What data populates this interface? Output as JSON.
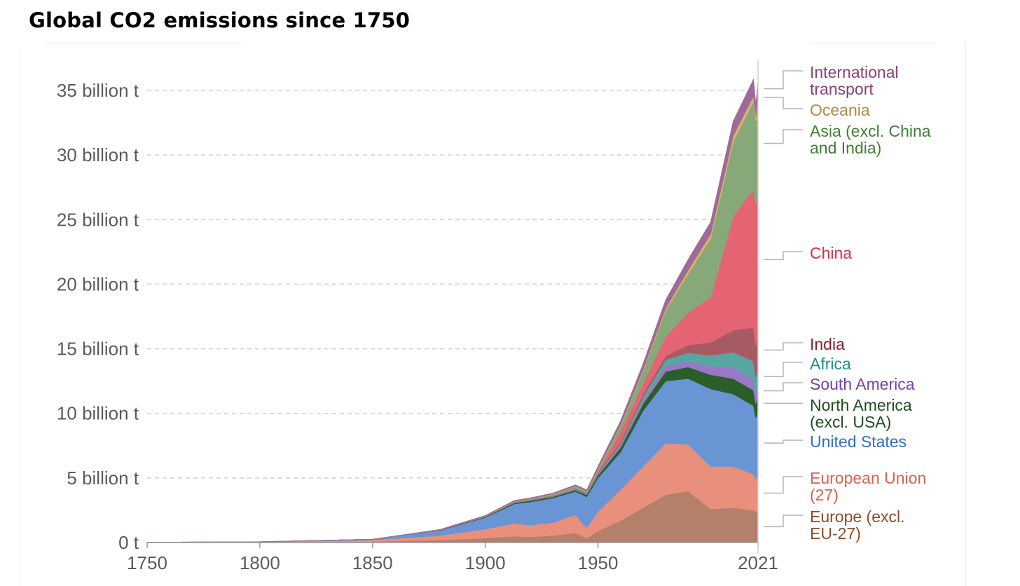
{
  "page_title": "Global CO2 emissions since 1750",
  "chart_data": {
    "type": "area",
    "stacked": true,
    "title": "Global CO2 emissions since 1750",
    "xlabel": "",
    "ylabel": "",
    "xlim": [
      1750,
      2021
    ],
    "ylim": [
      0,
      37
    ],
    "y_ticks": [
      {
        "value": 0,
        "label": "0 t"
      },
      {
        "value": 5,
        "label": "5 billion t"
      },
      {
        "value": 10,
        "label": "10 billion t"
      },
      {
        "value": 15,
        "label": "15 billion t"
      },
      {
        "value": 20,
        "label": "20 billion t"
      },
      {
        "value": 25,
        "label": "25 billion t"
      },
      {
        "value": 30,
        "label": "30 billion t"
      },
      {
        "value": 35,
        "label": "35 billion t"
      }
    ],
    "x_ticks": [
      "1750",
      "1800",
      "1850",
      "1900",
      "1950",
      "2021"
    ],
    "x_tick_values": [
      1750,
      1800,
      1850,
      1900,
      1950,
      2021
    ],
    "unit": "billion t",
    "grid": true,
    "legend_position": "right",
    "x": [
      1750,
      1800,
      1850,
      1880,
      1900,
      1913,
      1920,
      1930,
      1940,
      1945,
      1950,
      1960,
      1970,
      1980,
      1990,
      2000,
      2010,
      2019,
      2020,
      2021
    ],
    "series": [
      {
        "name": "Europe (excl. EU-27)",
        "color": "#b5806a",
        "label_color": "#8c4c2a",
        "values": [
          0.01,
          0.03,
          0.08,
          0.2,
          0.35,
          0.5,
          0.45,
          0.55,
          0.75,
          0.35,
          0.9,
          1.7,
          2.7,
          3.7,
          4.0,
          2.6,
          2.7,
          2.5,
          2.4,
          2.45
        ]
      },
      {
        "name": "European Union (27)",
        "color": "#e8907c",
        "label_color": "#d9624e",
        "values": [
          0.005,
          0.02,
          0.12,
          0.35,
          0.7,
          1.0,
          0.9,
          1.0,
          1.4,
          0.8,
          1.5,
          2.4,
          3.2,
          4.0,
          3.6,
          3.3,
          3.2,
          2.8,
          2.55,
          2.75
        ]
      },
      {
        "name": "United States",
        "color": "#6a95d4",
        "label_color": "#2f6fc4",
        "values": [
          0.0,
          0.005,
          0.05,
          0.4,
          0.9,
          1.5,
          1.8,
          1.9,
          1.8,
          2.4,
          2.6,
          2.9,
          4.3,
          4.8,
          5.1,
          6.0,
          5.6,
          5.3,
          4.7,
          5.0
        ]
      },
      {
        "name": "North America (excl. USA)",
        "color": "#2c5e2c",
        "label_color": "#1f4f1f",
        "values": [
          0.0,
          0.0,
          0.002,
          0.02,
          0.05,
          0.08,
          0.1,
          0.1,
          0.12,
          0.15,
          0.2,
          0.35,
          0.55,
          0.75,
          0.9,
          1.1,
          1.2,
          1.2,
          1.1,
          1.15
        ]
      },
      {
        "name": "South America",
        "color": "#9a78c8",
        "label_color": "#7a3fa8",
        "values": [
          0.0,
          0.0,
          0.0,
          0.005,
          0.01,
          0.02,
          0.02,
          0.03,
          0.04,
          0.05,
          0.07,
          0.15,
          0.25,
          0.4,
          0.45,
          0.65,
          0.85,
          0.85,
          0.75,
          0.8
        ]
      },
      {
        "name": "Africa",
        "color": "#58a6a0",
        "label_color": "#1f8f8a",
        "values": [
          0.0,
          0.0,
          0.0,
          0.003,
          0.01,
          0.02,
          0.03,
          0.03,
          0.04,
          0.05,
          0.07,
          0.15,
          0.3,
          0.5,
          0.65,
          0.85,
          1.2,
          1.4,
          1.3,
          1.4
        ]
      },
      {
        "name": "India",
        "color": "#a85a64",
        "label_color": "#8a1f2c",
        "values": [
          0.0,
          0.0,
          0.0,
          0.005,
          0.01,
          0.02,
          0.02,
          0.03,
          0.03,
          0.04,
          0.07,
          0.12,
          0.2,
          0.3,
          0.6,
          1.0,
          1.7,
          2.6,
          2.4,
          2.7
        ]
      },
      {
        "name": "China",
        "color": "#e46474",
        "label_color": "#d62f47",
        "values": [
          0.0,
          0.0,
          0.0,
          0.005,
          0.01,
          0.02,
          0.02,
          0.02,
          0.02,
          0.02,
          0.08,
          0.8,
          0.8,
          1.5,
          2.5,
          3.5,
          8.8,
          10.7,
          10.9,
          11.3
        ]
      },
      {
        "name": "Asia (excl. China and India)",
        "color": "#87a878",
        "label_color": "#3f7f33",
        "values": [
          0.0,
          0.0,
          0.0,
          0.005,
          0.02,
          0.05,
          0.05,
          0.08,
          0.15,
          0.1,
          0.2,
          0.5,
          1.0,
          2.0,
          3.0,
          4.5,
          5.8,
          6.8,
          6.5,
          6.7
        ]
      },
      {
        "name": "Oceania",
        "color": "#d8b068",
        "label_color": "#b28a3e",
        "values": [
          0.0,
          0.0,
          0.0,
          0.005,
          0.01,
          0.015,
          0.02,
          0.02,
          0.03,
          0.03,
          0.04,
          0.07,
          0.11,
          0.2,
          0.3,
          0.4,
          0.45,
          0.45,
          0.42,
          0.43
        ]
      },
      {
        "name": "International transport",
        "color": "#9e6a9a",
        "label_color": "#8a3f78",
        "values": [
          0.0,
          0.0,
          0.0,
          0.01,
          0.02,
          0.03,
          0.04,
          0.06,
          0.08,
          0.08,
          0.15,
          0.25,
          0.4,
          0.6,
          0.8,
          0.9,
          1.1,
          1.25,
          0.8,
          0.9
        ]
      }
    ]
  },
  "legend": [
    {
      "name": "International transport",
      "lines": [
        "International",
        "transport"
      ],
      "color": "#8a3f78"
    },
    {
      "name": "Oceania",
      "lines": [
        "Oceania"
      ],
      "color": "#b28a3e"
    },
    {
      "name": "Asia (excl. China and India)",
      "lines": [
        "Asia (excl. China",
        "and India)"
      ],
      "color": "#3f7f33"
    },
    {
      "name": "China",
      "lines": [
        "China"
      ],
      "color": "#d62f47"
    },
    {
      "name": "India",
      "lines": [
        "India"
      ],
      "color": "#8a1f2c"
    },
    {
      "name": "Africa",
      "lines": [
        "Africa"
      ],
      "color": "#1f8f8a"
    },
    {
      "name": "South America",
      "lines": [
        "South America"
      ],
      "color": "#7a3fa8"
    },
    {
      "name": "North America (excl. USA)",
      "lines": [
        "North America",
        "(excl. USA)"
      ],
      "color": "#1f4f1f"
    },
    {
      "name": "United States",
      "lines": [
        "United States"
      ],
      "color": "#2f6fc4"
    },
    {
      "name": "European Union (27)",
      "lines": [
        "European Union",
        "(27)"
      ],
      "color": "#d9624e"
    },
    {
      "name": "Europe (excl. EU-27)",
      "lines": [
        "Europe (excl.",
        "EU-27)"
      ],
      "color": "#8c4c2a"
    }
  ]
}
